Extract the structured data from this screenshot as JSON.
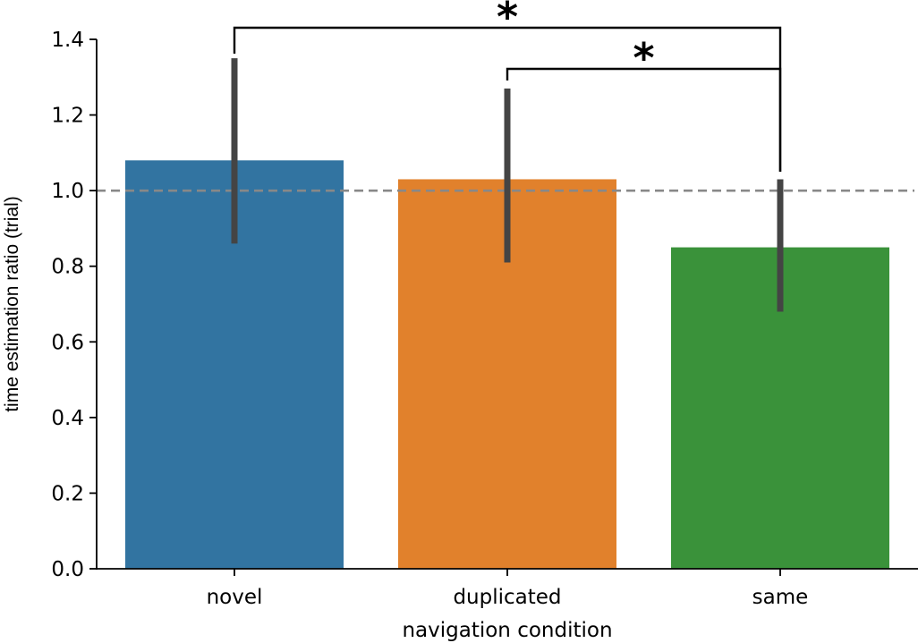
{
  "chart_data": {
    "type": "bar",
    "title": "",
    "xlabel": "navigation condition",
    "ylabel": "time estimation ratio (trial)",
    "categories": [
      "novel",
      "duplicated",
      "same"
    ],
    "values": [
      1.08,
      1.03,
      0.85
    ],
    "error_bars": [
      {
        "low": 0.86,
        "high": 1.35
      },
      {
        "low": 0.81,
        "high": 1.27
      },
      {
        "low": 0.68,
        "high": 1.03
      }
    ],
    "colors": [
      "#3274a1",
      "#e1812c",
      "#3a923a"
    ],
    "error_color": "#444444",
    "ylim": [
      0,
      1.4
    ],
    "yticks": [
      "0.0",
      "0.2",
      "0.4",
      "0.6",
      "0.8",
      "1.0",
      "1.2",
      "1.4"
    ],
    "reference_line": {
      "y": 1.0,
      "style": "dashed",
      "color": "#888888"
    },
    "significance": [
      {
        "from": "novel",
        "to": "same",
        "label": "*"
      },
      {
        "from": "duplicated",
        "to": "same",
        "label": "*"
      }
    ],
    "grid": false,
    "legend": "none"
  }
}
